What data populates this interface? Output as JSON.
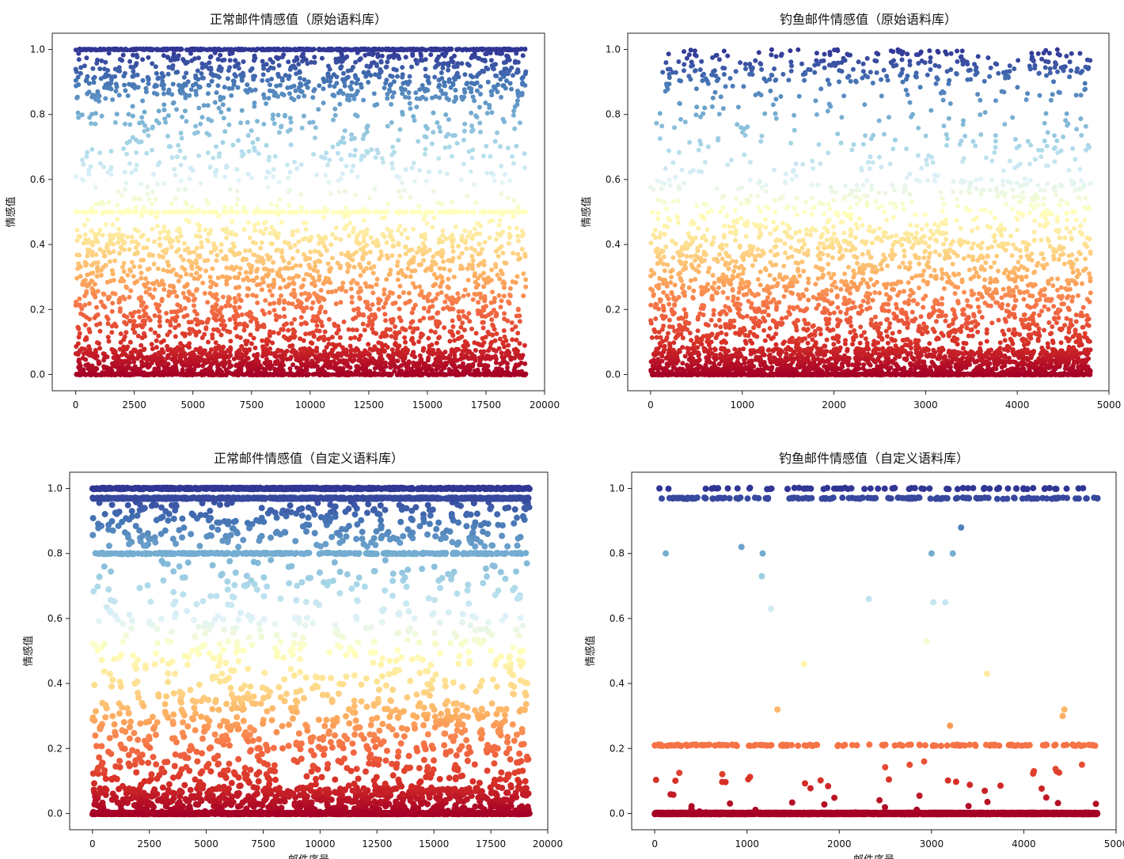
{
  "chart_data": [
    {
      "type": "scatter",
      "title": "正常邮件情感值（原始语料库）",
      "xlabel": "",
      "ylabel": "情感值",
      "xlim": [
        -1000,
        20000
      ],
      "ylim": [
        -0.05,
        1.05
      ],
      "xticks": [
        0,
        2500,
        5000,
        7500,
        10000,
        12500,
        15000,
        17500,
        20000
      ],
      "yticks": [
        0.0,
        0.2,
        0.4,
        0.6,
        0.8,
        1.0
      ],
      "grid": false,
      "n_emails": 19200,
      "colormap": "RdYlBu",
      "bands": [
        {
          "y_min": 0.0,
          "y_max": 0.0,
          "fraction": 0.1
        },
        {
          "y_min": 0.0,
          "y_max": 0.08,
          "fraction": 0.22
        },
        {
          "y_min": 0.08,
          "y_max": 0.3,
          "fraction": 0.18
        },
        {
          "y_min": 0.3,
          "y_max": 0.45,
          "fraction": 0.12
        },
        {
          "y_min": 0.5,
          "y_max": 0.5,
          "fraction": 0.05
        },
        {
          "y_min": 0.45,
          "y_max": 0.6,
          "fraction": 0.03
        },
        {
          "y_min": 0.6,
          "y_max": 0.85,
          "fraction": 0.07
        },
        {
          "y_min": 0.85,
          "y_max": 0.99,
          "fraction": 0.13
        },
        {
          "y_min": 1.0,
          "y_max": 1.0,
          "fraction": 0.1
        }
      ]
    },
    {
      "type": "scatter",
      "title": "钓鱼邮件情感值（原始语料库）",
      "xlabel": "",
      "ylabel": "情感值",
      "xlim": [
        -250,
        5000
      ],
      "ylim": [
        -0.05,
        1.05
      ],
      "xticks": [
        0,
        1000,
        2000,
        3000,
        4000,
        5000
      ],
      "yticks": [
        0.0,
        0.2,
        0.4,
        0.6,
        0.8,
        1.0
      ],
      "grid": false,
      "n_emails": 4800,
      "colormap": "RdYlBu",
      "bands": [
        {
          "y_min": 0.0,
          "y_max": 0.0,
          "fraction": 0.22
        },
        {
          "y_min": 0.0,
          "y_max": 0.08,
          "fraction": 0.26
        },
        {
          "y_min": 0.08,
          "y_max": 0.3,
          "fraction": 0.22
        },
        {
          "y_min": 0.3,
          "y_max": 0.45,
          "fraction": 0.12
        },
        {
          "y_min": 0.45,
          "y_max": 0.6,
          "fraction": 0.07
        },
        {
          "y_min": 0.6,
          "y_max": 0.9,
          "fraction": 0.05
        },
        {
          "y_min": 0.9,
          "y_max": 1.0,
          "fraction": 0.06
        }
      ]
    },
    {
      "type": "scatter",
      "title": "正常邮件情感值（自定义语料库）",
      "xlabel": "邮件序号",
      "ylabel": "情感值",
      "xlim": [
        -1000,
        20000
      ],
      "ylim": [
        -0.05,
        1.05
      ],
      "xticks": [
        0,
        2500,
        5000,
        7500,
        10000,
        12500,
        15000,
        17500,
        20000
      ],
      "yticks": [
        0.0,
        0.2,
        0.4,
        0.6,
        0.8,
        1.0
      ],
      "grid": false,
      "n_emails": 19200,
      "colormap": "RdYlBu",
      "bands": [
        {
          "y_min": 0.0,
          "y_max": 0.0,
          "fraction": 0.3
        },
        {
          "y_min": 0.0,
          "y_max": 0.08,
          "fraction": 0.12
        },
        {
          "y_min": 0.08,
          "y_max": 0.35,
          "fraction": 0.12
        },
        {
          "y_min": 0.35,
          "y_max": 0.6,
          "fraction": 0.06
        },
        {
          "y_min": 0.6,
          "y_max": 0.78,
          "fraction": 0.03
        },
        {
          "y_min": 0.8,
          "y_max": 0.8,
          "fraction": 0.05
        },
        {
          "y_min": 0.82,
          "y_max": 0.96,
          "fraction": 0.06
        },
        {
          "y_min": 0.97,
          "y_max": 0.97,
          "fraction": 0.13
        },
        {
          "y_min": 1.0,
          "y_max": 1.0,
          "fraction": 0.13
        }
      ]
    },
    {
      "type": "scatter",
      "title": "钓鱼邮件情感值（自定义语料库）",
      "xlabel": "邮件序号",
      "ylabel": "情感值",
      "xlim": [
        -250,
        5000
      ],
      "ylim": [
        -0.05,
        1.05
      ],
      "xticks": [
        0,
        1000,
        2000,
        3000,
        4000,
        5000
      ],
      "yticks": [
        0.0,
        0.2,
        0.4,
        0.6,
        0.8,
        1.0
      ],
      "grid": false,
      "n_emails": 4800,
      "colormap": "RdYlBu",
      "bands": [
        {
          "y_min": 0.0,
          "y_max": 0.0,
          "fraction": 0.9
        },
        {
          "y_min": 0.0,
          "y_max": 0.15,
          "fraction": 0.01
        },
        {
          "y_min": 0.21,
          "y_max": 0.21,
          "fraction": 0.03
        },
        {
          "y_min": 0.97,
          "y_max": 0.97,
          "fraction": 0.03
        },
        {
          "y_min": 1.0,
          "y_max": 1.0,
          "fraction": 0.015
        }
      ],
      "points": [
        {
          "x": 120,
          "y": 0.8
        },
        {
          "x": 940,
          "y": 0.82
        },
        {
          "x": 1170,
          "y": 0.8
        },
        {
          "x": 1160,
          "y": 0.73
        },
        {
          "x": 1260,
          "y": 0.63
        },
        {
          "x": 1330,
          "y": 0.32
        },
        {
          "x": 1620,
          "y": 0.46
        },
        {
          "x": 2320,
          "y": 0.66
        },
        {
          "x": 2950,
          "y": 0.53
        },
        {
          "x": 3000,
          "y": 0.8
        },
        {
          "x": 3020,
          "y": 0.65
        },
        {
          "x": 3150,
          "y": 0.65
        },
        {
          "x": 3230,
          "y": 0.8
        },
        {
          "x": 3320,
          "y": 0.88
        },
        {
          "x": 3200,
          "y": 0.27
        },
        {
          "x": 3600,
          "y": 0.43
        },
        {
          "x": 4440,
          "y": 0.32
        },
        {
          "x": 4420,
          "y": 0.3
        },
        {
          "x": 4630,
          "y": 0.15
        },
        {
          "x": 2920,
          "y": 0.16
        }
      ]
    }
  ]
}
